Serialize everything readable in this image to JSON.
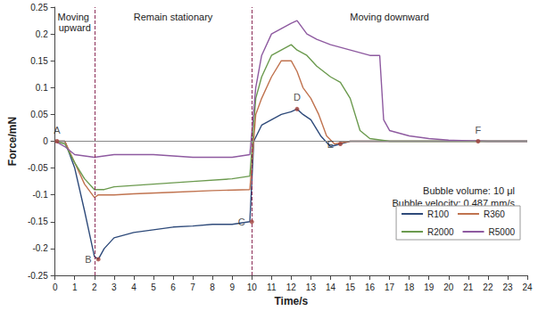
{
  "chart_data": {
    "type": "line",
    "x_label": "Time/s",
    "y_label": "Force/mN",
    "xlim": [
      0,
      24
    ],
    "xticks": [
      0,
      1,
      2,
      3,
      4,
      5,
      6,
      7,
      8,
      9,
      10,
      11,
      12,
      13,
      14,
      15,
      16,
      17,
      18,
      19,
      20,
      21,
      22,
      23,
      24
    ],
    "ylim": [
      -0.25,
      0.25
    ],
    "yticks": [
      -0.25,
      -0.2,
      -0.15,
      -0.1,
      -0.05,
      0,
      0.05,
      0.1,
      0.15,
      0.2,
      0.25
    ],
    "grid": false,
    "legend": "lower right",
    "series": [
      {
        "name": "R100",
        "color": "#2e4a7a",
        "x": [
          0,
          0.5,
          1,
          1.5,
          2,
          2.2,
          2.5,
          3,
          4,
          5,
          6,
          7,
          8,
          9,
          9.9,
          10.1,
          10.5,
          11,
          11.5,
          12,
          12.3,
          12.6,
          13,
          13.5,
          14,
          14.5,
          15,
          18,
          21,
          24
        ],
        "values": [
          0,
          0,
          -0.05,
          -0.13,
          -0.215,
          -0.22,
          -0.2,
          -0.18,
          -0.17,
          -0.165,
          -0.16,
          -0.158,
          -0.155,
          -0.155,
          -0.15,
          0,
          0.03,
          0.04,
          0.05,
          0.055,
          0.06,
          0.05,
          0.04,
          0.01,
          -0.01,
          -0.005,
          0,
          0,
          0,
          0
        ]
      },
      {
        "name": "R360",
        "color": "#c0734f",
        "x": [
          0,
          0.5,
          1,
          1.5,
          2,
          2.2,
          2.5,
          3,
          4,
          6,
          8,
          9.9,
          10.2,
          10.5,
          11,
          11.5,
          12,
          12.3,
          12.6,
          13,
          13.4,
          13.8,
          14.2,
          15,
          18,
          21,
          24
        ],
        "values": [
          0,
          0,
          -0.04,
          -0.08,
          -0.105,
          -0.1,
          -0.1,
          -0.1,
          -0.098,
          -0.095,
          -0.092,
          -0.09,
          0.05,
          0.08,
          0.12,
          0.15,
          0.15,
          0.13,
          0.1,
          0.08,
          0.05,
          0.01,
          -0.005,
          0,
          0,
          0,
          0
        ]
      },
      {
        "name": "R2000",
        "color": "#6b9a4e",
        "x": [
          0,
          0.5,
          1,
          1.5,
          2,
          2.5,
          3,
          5,
          7,
          9,
          9.9,
          10.2,
          10.5,
          11,
          11.5,
          12,
          12.3,
          12.8,
          13.3,
          14,
          14.5,
          15,
          15.5,
          16,
          17,
          20,
          24
        ],
        "values": [
          0,
          -0.005,
          -0.04,
          -0.07,
          -0.09,
          -0.09,
          -0.085,
          -0.08,
          -0.075,
          -0.07,
          -0.065,
          0.08,
          0.12,
          0.16,
          0.17,
          0.18,
          0.17,
          0.16,
          0.14,
          0.12,
          0.11,
          0.08,
          0.02,
          0.005,
          0,
          0,
          0
        ]
      },
      {
        "name": "R5000",
        "color": "#8e5aa0",
        "x": [
          0,
          0.5,
          1,
          2,
          3,
          5,
          7,
          9,
          9.9,
          10.2,
          10.5,
          11,
          11.5,
          12,
          12.3,
          12.8,
          13.3,
          14,
          15,
          16,
          16.5,
          16.7,
          17,
          18,
          19,
          20,
          22,
          24
        ],
        "values": [
          0,
          -0.01,
          -0.025,
          -0.03,
          -0.025,
          -0.025,
          -0.03,
          -0.03,
          -0.025,
          0.1,
          0.16,
          0.2,
          0.21,
          0.22,
          0.225,
          0.2,
          0.19,
          0.18,
          0.17,
          0.16,
          0.16,
          0.04,
          0.02,
          0.01,
          0.005,
          0.002,
          0,
          0
        ]
      }
    ],
    "phases": [
      {
        "label": "Moving upward",
        "start": 0,
        "end": 2
      },
      {
        "label": "Remain stationary",
        "start": 2,
        "end": 10
      },
      {
        "label": "Moving downward",
        "start": 10,
        "end": 24
      }
    ],
    "points": [
      {
        "label": "A",
        "x": 0.1,
        "y": 0
      },
      {
        "label": "B",
        "x": 2.2,
        "y": -0.22
      },
      {
        "label": "C",
        "x": 10,
        "y": -0.15
      },
      {
        "label": "D",
        "x": 12.3,
        "y": 0.06
      },
      {
        "label": "E",
        "x": 14.5,
        "y": -0.005
      },
      {
        "label": "F",
        "x": 21.5,
        "y": 0
      }
    ],
    "notes": [
      "Bubble volume: 10 μl",
      "Bubble velocity: 0.487 mm/s"
    ]
  }
}
